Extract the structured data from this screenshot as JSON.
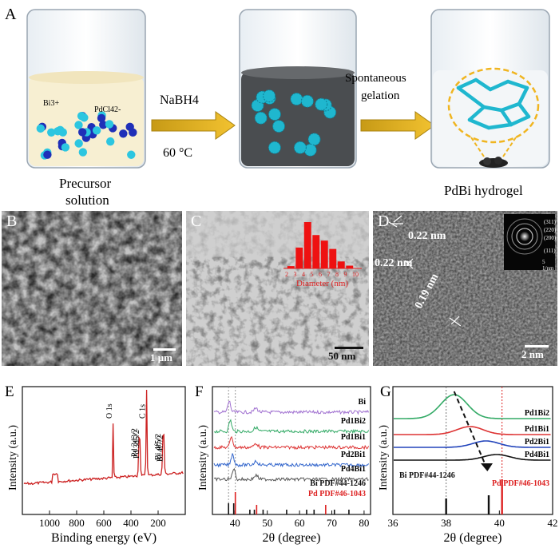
{
  "panel_a": {
    "label": "A",
    "ion_bi": "Bi3+",
    "ion_pd": "PdCl42-",
    "reagent": "NaBH4",
    "temperature": "60 °C",
    "step2_line1": "Spontaneous",
    "step2_line2": "gelation",
    "caption_left_1": "Precursor",
    "caption_left_2": "solution",
    "caption_right": "PdBi hydrogel"
  },
  "panel_b": {
    "label": "B",
    "scale": "1 μm"
  },
  "panel_c": {
    "label": "C",
    "scale": "50 nm",
    "inset_xlabel": "Diameter (nm)",
    "inset_ticks": [
      "2",
      "3",
      "4",
      "5",
      "6",
      "7",
      "8",
      "9",
      "10"
    ],
    "inset_values": [
      0.05,
      0.45,
      1.0,
      0.72,
      0.6,
      0.42,
      0.15,
      0.06
    ]
  },
  "panel_d": {
    "label": "D",
    "scale": "2 nm",
    "spacings": [
      "0.22 nm",
      "0.22 nm",
      "0.19 nm"
    ],
    "saed_rings": [
      "(311)",
      "(220)",
      "(200)",
      "(111)"
    ],
    "saed_scale": "5 1/nm"
  },
  "chart_data": [
    {
      "panel": "E",
      "type": "line",
      "title": "",
      "xlabel": "Binding energy (eV)",
      "ylabel": "Intensity (a.u.)",
      "xlim": [
        1200,
        0
      ],
      "xticks": [
        "1000",
        "800",
        "600",
        "400",
        "200"
      ],
      "peaks": [
        "O 1s",
        "Pd 3d3/2",
        "Pd 3d5/2",
        "C 1s",
        "Bi 4f5/2",
        "Bi 4f7/2"
      ],
      "series": [
        {
          "name": "survey",
          "color": "#cc2222"
        }
      ]
    },
    {
      "panel": "F",
      "type": "line",
      "xlabel": "2θ (degree)",
      "ylabel": "Intensity (a.u.)",
      "xlim": [
        33,
        82
      ],
      "xticks": [
        "40",
        "50",
        "60",
        "70",
        "80"
      ],
      "series": [
        {
          "name": "Bi",
          "color": "#a070d0"
        },
        {
          "name": "Pd1Bi2",
          "color": "#33aa66"
        },
        {
          "name": "Pd1Bi1",
          "color": "#dd3333"
        },
        {
          "name": "Pd2Bi1",
          "color": "#3366cc"
        },
        {
          "name": "Pd4Bi1",
          "color": "#555555"
        }
      ],
      "references": [
        {
          "name": "Bi  PDF#44-1246",
          "color": "#111111",
          "peaks": [
            38,
            39.6,
            44.6,
            46,
            48.7,
            56,
            62.2,
            64.5,
            70.8,
            75.3
          ]
        },
        {
          "name": "Pd  PDF#46-1043",
          "color": "#dd2222",
          "peaks": [
            40.1,
            46.7,
            68.1,
            82.1
          ]
        }
      ]
    },
    {
      "panel": "G",
      "type": "line",
      "xlabel": "2θ (degree)",
      "ylabel": "Intensity (a.u.)",
      "xlim": [
        36,
        42
      ],
      "xticks": [
        "36",
        "38",
        "40",
        "42"
      ],
      "series": [
        {
          "name": "Pd1Bi2",
          "color": "#33aa66",
          "peak": 38.3
        },
        {
          "name": "Pd1Bi1",
          "color": "#dd3333",
          "peak": 38.9
        },
        {
          "name": "Pd2Bi1",
          "color": "#2244bb",
          "peak": 39.5
        },
        {
          "name": "Pd4Bi1",
          "color": "#111111",
          "peak": 39.9
        }
      ],
      "references": [
        {
          "name": "Bi  PDF#44-1246",
          "color": "#111111",
          "peaks": [
            38,
            39.6
          ]
        },
        {
          "name": "Pd  PDF#46-1043",
          "color": "#dd2222",
          "peaks": [
            40.1
          ]
        }
      ]
    }
  ]
}
